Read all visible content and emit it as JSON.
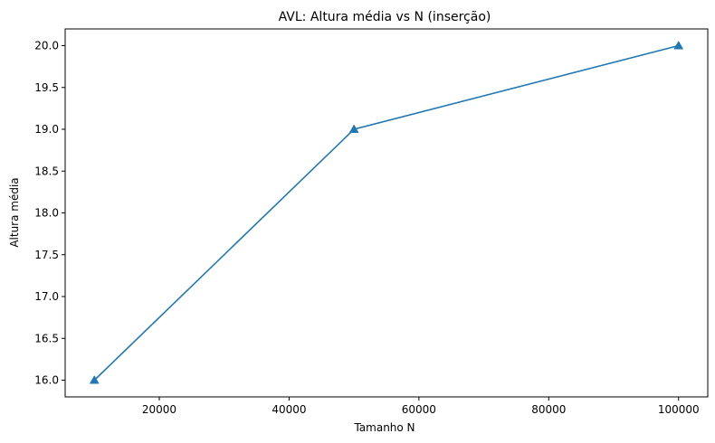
{
  "chart_data": {
    "type": "line",
    "title": "AVL: Altura média vs N (inserção)",
    "xlabel": "Tamanho N",
    "ylabel": "Altura média",
    "x": [
      10000,
      50000,
      100000
    ],
    "series": [
      {
        "values": [
          16.0,
          19.0,
          20.0
        ],
        "color": "#1f77b4",
        "marker": "triangle-up"
      }
    ],
    "xlim": [
      5500,
      104500
    ],
    "ylim": [
      15.8,
      20.2
    ],
    "xticks": [
      20000,
      40000,
      60000,
      80000,
      100000
    ],
    "xtick_labels": [
      "20000",
      "40000",
      "60000",
      "80000",
      "100000"
    ],
    "yticks": [
      16.0,
      16.5,
      17.0,
      17.5,
      18.0,
      18.5,
      19.0,
      19.5,
      20.0
    ],
    "ytick_labels": [
      "16.0",
      "16.5",
      "17.0",
      "17.5",
      "18.0",
      "18.5",
      "19.0",
      "19.5",
      "20.0"
    ],
    "grid": false,
    "legend": "none"
  }
}
